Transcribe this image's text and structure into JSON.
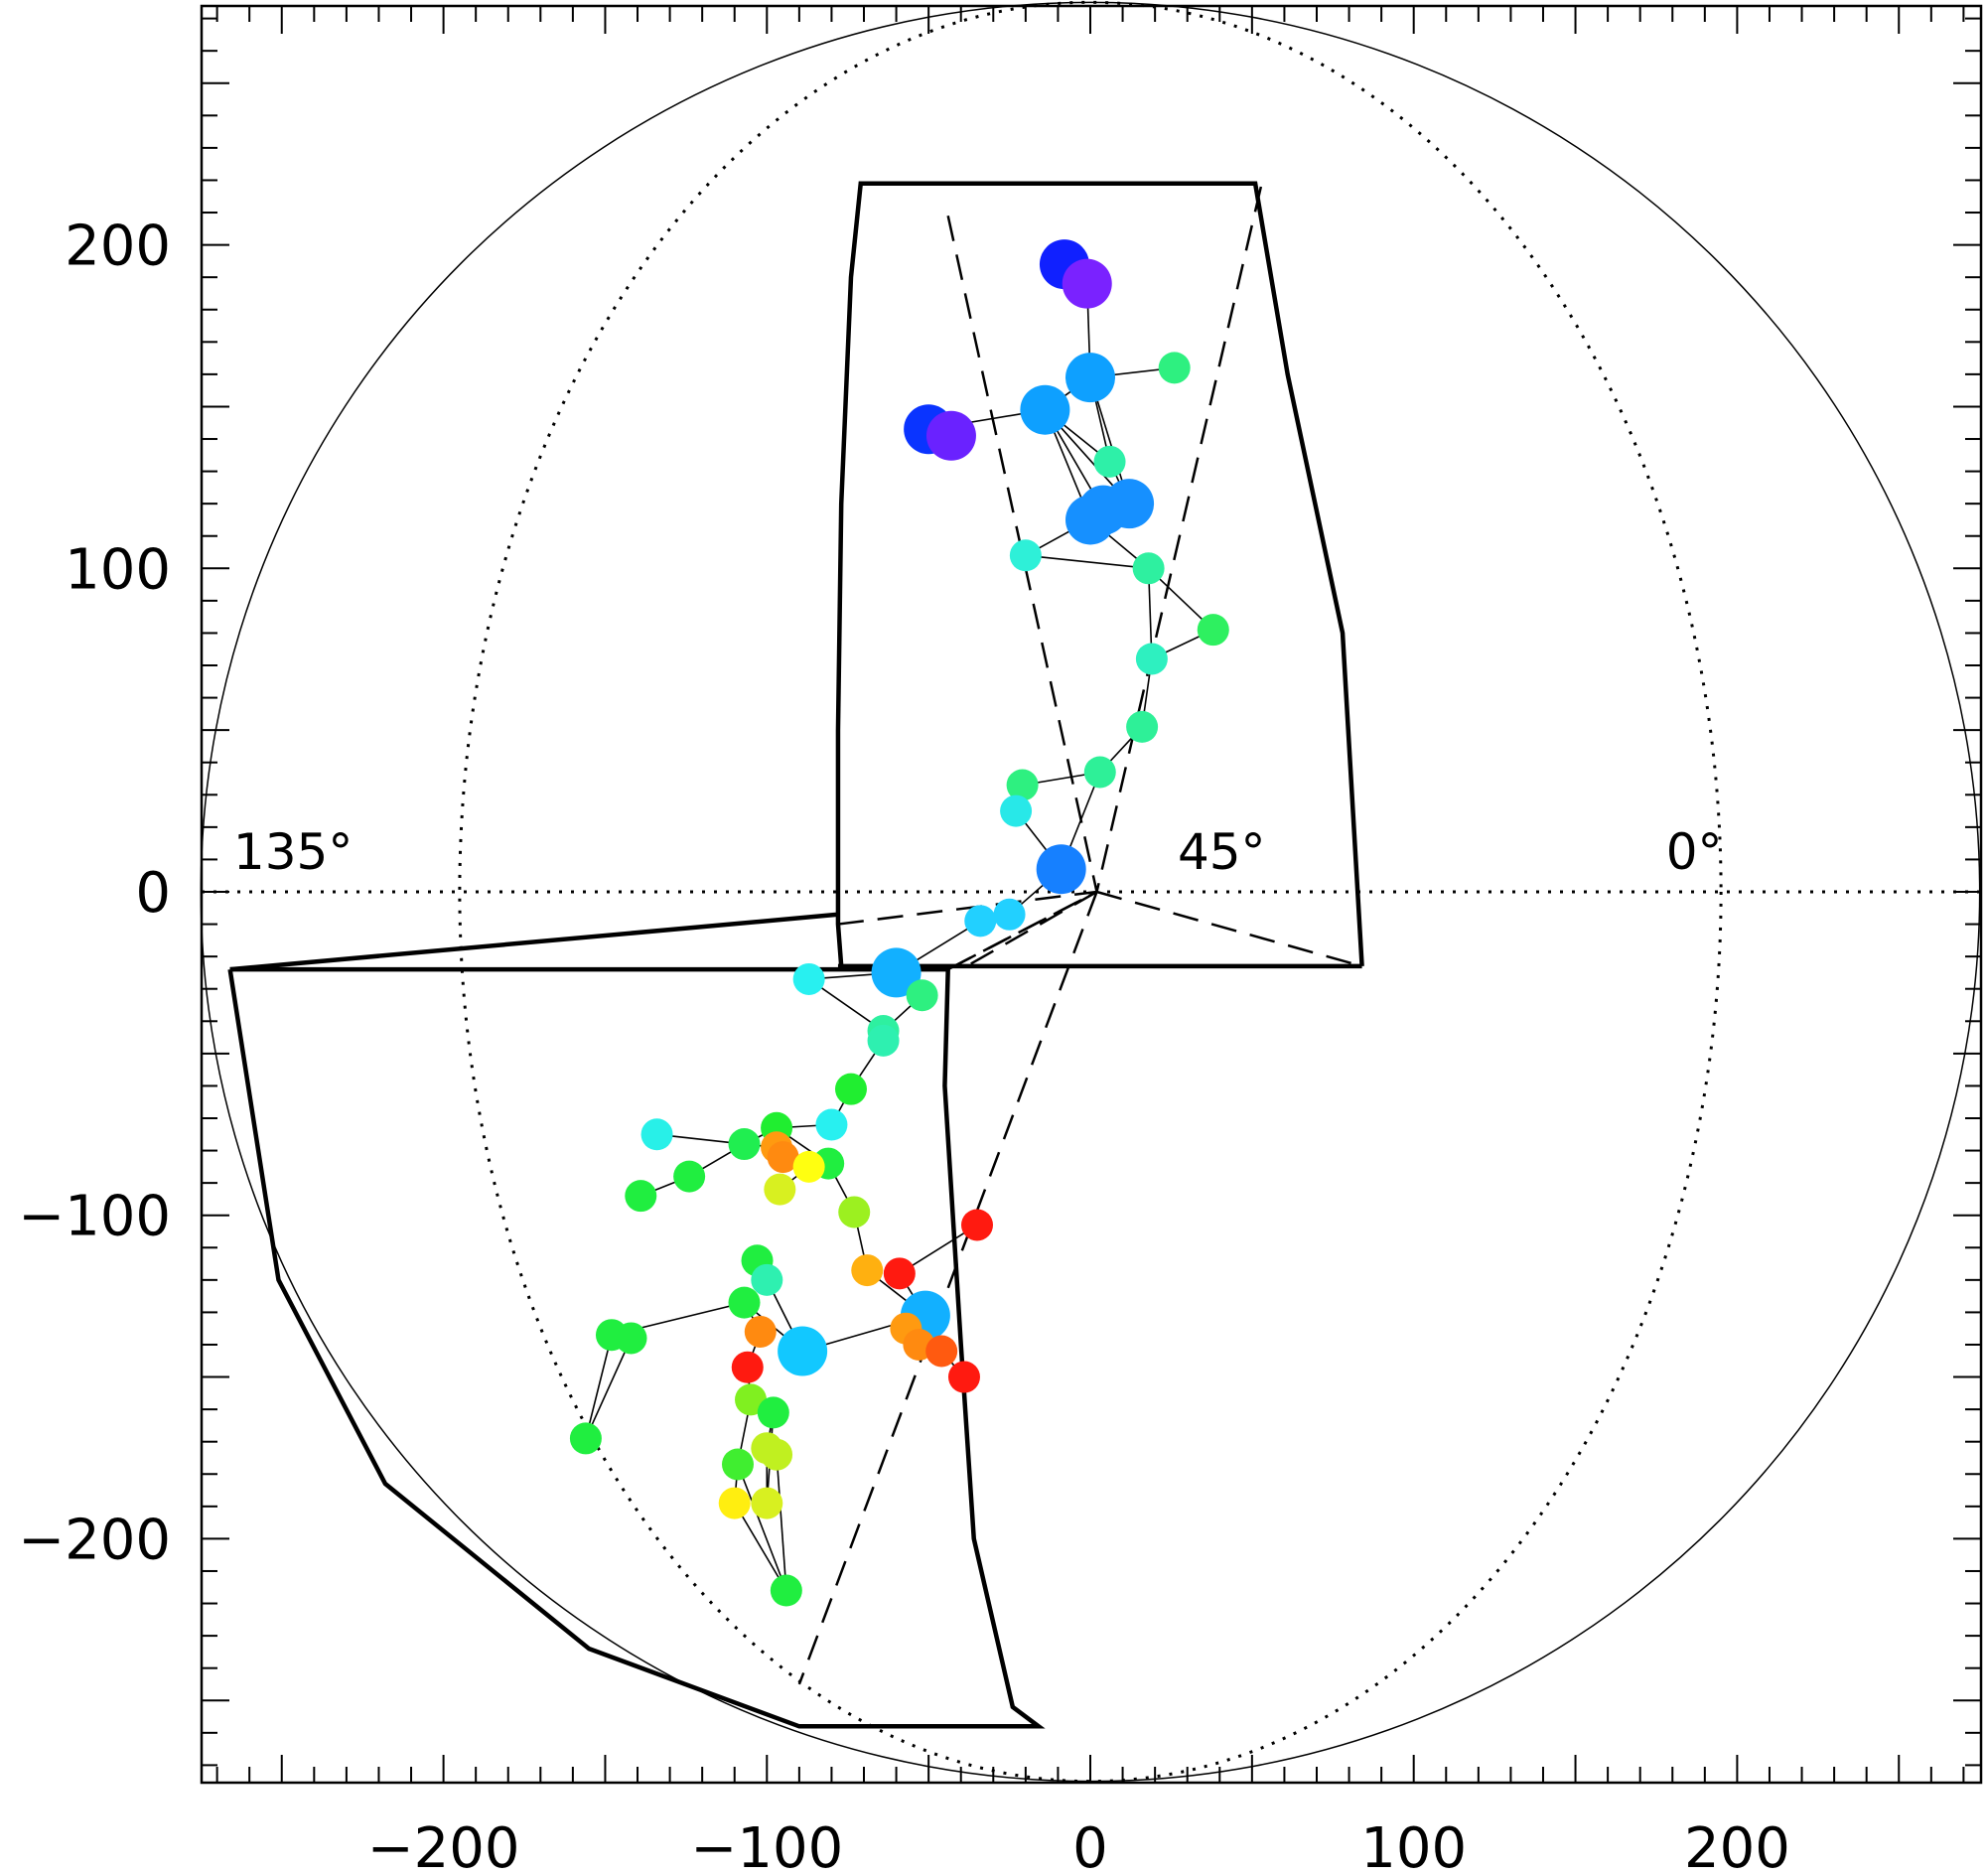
{
  "chart_data": {
    "type": "scatter",
    "title": "",
    "xlabel": "",
    "ylabel": "",
    "xlim": [
      -275,
      275
    ],
    "ylim": [
      -275,
      275
    ],
    "xticks": [
      -200,
      -100,
      0,
      100,
      200
    ],
    "yticks": [
      -200,
      -100,
      0,
      100,
      200
    ],
    "xtick_labels": [
      "−200",
      "−100",
      "0",
      "100",
      "200"
    ],
    "ytick_labels": [
      "−200",
      "−100",
      "0",
      "100",
      "200"
    ],
    "grid": false,
    "angle_labels": [
      "135°",
      "45°",
      "0°"
    ],
    "solar_disk_radius": 275,
    "dotted_ellipse_semi_x": 195,
    "points": [
      {
        "x": -8,
        "y": 194,
        "size": "large",
        "color": "#1020ff"
      },
      {
        "x": -1,
        "y": 188,
        "size": "large",
        "color": "#7a22ff"
      },
      {
        "x": 26,
        "y": 162,
        "size": "small",
        "color": "#2ef080"
      },
      {
        "x": 0,
        "y": 159,
        "size": "large",
        "color": "#0ea0ff"
      },
      {
        "x": -14,
        "y": 149,
        "size": "large",
        "color": "#0ea0ff"
      },
      {
        "x": -50,
        "y": 143,
        "size": "large",
        "color": "#0a34ff"
      },
      {
        "x": -43,
        "y": 141,
        "size": "large",
        "color": "#6a22ff"
      },
      {
        "x": 6,
        "y": 133,
        "size": "small",
        "color": "#2ef0a8"
      },
      {
        "x": 12,
        "y": 120,
        "size": "large",
        "color": "#1690ff"
      },
      {
        "x": 4,
        "y": 118,
        "size": "large",
        "color": "#1690ff"
      },
      {
        "x": 0,
        "y": 115,
        "size": "large",
        "color": "#1690ff"
      },
      {
        "x": -20,
        "y": 104,
        "size": "small",
        "color": "#2ef0d8"
      },
      {
        "x": 18,
        "y": 100,
        "size": "small",
        "color": "#2ef0a0"
      },
      {
        "x": 38,
        "y": 81,
        "size": "small",
        "color": "#2ef060"
      },
      {
        "x": 19,
        "y": 72,
        "size": "small",
        "color": "#2ef0c0"
      },
      {
        "x": 16,
        "y": 51,
        "size": "small",
        "color": "#2ef098"
      },
      {
        "x": 3,
        "y": 37,
        "size": "small",
        "color": "#2ef098"
      },
      {
        "x": -21,
        "y": 33,
        "size": "small",
        "color": "#2ef080"
      },
      {
        "x": -23,
        "y": 25,
        "size": "small",
        "color": "#28e8e8"
      },
      {
        "x": -9,
        "y": 7,
        "size": "large",
        "color": "#1680ff"
      },
      {
        "x": -25,
        "y": -7,
        "size": "small",
        "color": "#22d0ff"
      },
      {
        "x": -34,
        "y": -9,
        "size": "small",
        "color": "#22d0ff"
      },
      {
        "x": -60,
        "y": -25,
        "size": "large",
        "color": "#12b0ff"
      },
      {
        "x": -87,
        "y": -27,
        "size": "small",
        "color": "#28f0f0"
      },
      {
        "x": -52,
        "y": -32,
        "size": "small",
        "color": "#2ef080"
      },
      {
        "x": -64,
        "y": -43,
        "size": "small",
        "color": "#2ef0a0"
      },
      {
        "x": -64,
        "y": -46,
        "size": "small",
        "color": "#2ef0b0"
      },
      {
        "x": -74,
        "y": -61,
        "size": "small",
        "color": "#20ee30"
      },
      {
        "x": -134,
        "y": -75,
        "size": "small",
        "color": "#28f0e8"
      },
      {
        "x": -80,
        "y": -72,
        "size": "small",
        "color": "#28f0f0"
      },
      {
        "x": -97,
        "y": -73,
        "size": "small",
        "color": "#20ee30"
      },
      {
        "x": -107,
        "y": -78,
        "size": "small",
        "color": "#20ee50"
      },
      {
        "x": -97,
        "y": -79,
        "size": "small",
        "color": "#ff9a10"
      },
      {
        "x": -95,
        "y": -82,
        "size": "small",
        "color": "#ff8a10"
      },
      {
        "x": -81,
        "y": -84,
        "size": "small",
        "color": "#20ee40"
      },
      {
        "x": -87,
        "y": -85,
        "size": "small",
        "color": "#ffff10"
      },
      {
        "x": -124,
        "y": -88,
        "size": "small",
        "color": "#20ee40"
      },
      {
        "x": -96,
        "y": -92,
        "size": "small",
        "color": "#d8f020"
      },
      {
        "x": -139,
        "y": -94,
        "size": "small",
        "color": "#20ee40"
      },
      {
        "x": -73,
        "y": -99,
        "size": "small",
        "color": "#9cf020"
      },
      {
        "x": -35,
        "y": -103,
        "size": "small",
        "color": "#ff1a10"
      },
      {
        "x": -103,
        "y": -114,
        "size": "small",
        "color": "#20ee40"
      },
      {
        "x": -69,
        "y": -117,
        "size": "small",
        "color": "#ffb010"
      },
      {
        "x": -59,
        "y": -118,
        "size": "small",
        "color": "#ff1a10"
      },
      {
        "x": -100,
        "y": -120,
        "size": "small",
        "color": "#2ef0b0"
      },
      {
        "x": -107,
        "y": -127,
        "size": "small",
        "color": "#20ee40"
      },
      {
        "x": -51,
        "y": -131,
        "size": "large",
        "color": "#12b0ff"
      },
      {
        "x": -102,
        "y": -136,
        "size": "small",
        "color": "#ff8a10"
      },
      {
        "x": -57,
        "y": -135,
        "size": "small",
        "color": "#ff9a10"
      },
      {
        "x": -148,
        "y": -137,
        "size": "small",
        "color": "#20ee40"
      },
      {
        "x": -142,
        "y": -138,
        "size": "small",
        "color": "#20ee40"
      },
      {
        "x": -89,
        "y": -142,
        "size": "large",
        "color": "#12c8ff"
      },
      {
        "x": -53,
        "y": -140,
        "size": "small",
        "color": "#ff8a10"
      },
      {
        "x": -46,
        "y": -142,
        "size": "small",
        "color": "#ff5a10"
      },
      {
        "x": -106,
        "y": -147,
        "size": "small",
        "color": "#ff1a10"
      },
      {
        "x": -39,
        "y": -150,
        "size": "small",
        "color": "#ff1a10"
      },
      {
        "x": -105,
        "y": -157,
        "size": "small",
        "color": "#80f020"
      },
      {
        "x": -98,
        "y": -161,
        "size": "small",
        "color": "#20ee40"
      },
      {
        "x": -156,
        "y": -169,
        "size": "small",
        "color": "#20ee40"
      },
      {
        "x": -100,
        "y": -172,
        "size": "small",
        "color": "#c0f020"
      },
      {
        "x": -97,
        "y": -174,
        "size": "small",
        "color": "#c0f020"
      },
      {
        "x": -109,
        "y": -177,
        "size": "small",
        "color": "#40ee30"
      },
      {
        "x": -110,
        "y": -189,
        "size": "small",
        "color": "#ffee10"
      },
      {
        "x": -100,
        "y": -189,
        "size": "small",
        "color": "#d8f020"
      },
      {
        "x": -94,
        "y": -216,
        "size": "small",
        "color": "#20ee40"
      }
    ],
    "links": [
      [
        0,
        1
      ],
      [
        1,
        3
      ],
      [
        3,
        4
      ],
      [
        4,
        5
      ],
      [
        5,
        6
      ],
      [
        3,
        2
      ],
      [
        3,
        8
      ],
      [
        3,
        7
      ],
      [
        4,
        7
      ],
      [
        4,
        8
      ],
      [
        4,
        9
      ],
      [
        4,
        10
      ],
      [
        7,
        8
      ],
      [
        8,
        9
      ],
      [
        9,
        10
      ],
      [
        10,
        11
      ],
      [
        11,
        12
      ],
      [
        10,
        12
      ],
      [
        12,
        14
      ],
      [
        12,
        13
      ],
      [
        13,
        14
      ],
      [
        14,
        15
      ],
      [
        15,
        16
      ],
      [
        16,
        17
      ],
      [
        16,
        19
      ],
      [
        17,
        18
      ],
      [
        18,
        19
      ],
      [
        19,
        20
      ],
      [
        20,
        21
      ],
      [
        21,
        22
      ],
      [
        22,
        23
      ],
      [
        23,
        25
      ],
      [
        22,
        24
      ],
      [
        24,
        25
      ],
      [
        25,
        26
      ],
      [
        26,
        27
      ],
      [
        27,
        29
      ],
      [
        29,
        30
      ],
      [
        30,
        31
      ],
      [
        31,
        28
      ],
      [
        31,
        36
      ],
      [
        36,
        38
      ],
      [
        31,
        32
      ],
      [
        32,
        33
      ],
      [
        33,
        34
      ],
      [
        34,
        35
      ],
      [
        35,
        37
      ],
      [
        30,
        34
      ],
      [
        34,
        39
      ],
      [
        39,
        42
      ],
      [
        42,
        46
      ],
      [
        46,
        43
      ],
      [
        43,
        40
      ],
      [
        46,
        48
      ],
      [
        48,
        52
      ],
      [
        52,
        53
      ],
      [
        53,
        55
      ],
      [
        46,
        51
      ],
      [
        51,
        44
      ],
      [
        44,
        41
      ],
      [
        51,
        45
      ],
      [
        45,
        49
      ],
      [
        49,
        50
      ],
      [
        49,
        58
      ],
      [
        50,
        58
      ],
      [
        45,
        47
      ],
      [
        47,
        54
      ],
      [
        54,
        56
      ],
      [
        56,
        57
      ],
      [
        57,
        59
      ],
      [
        59,
        60
      ],
      [
        56,
        61
      ],
      [
        61,
        62
      ],
      [
        62,
        64
      ],
      [
        57,
        63
      ],
      [
        60,
        64
      ],
      [
        61,
        64
      ],
      [
        59,
        63
      ]
    ],
    "frames": {
      "upper_panel": [
        [
          -77,
          -23
        ],
        [
          -78,
          -10
        ],
        [
          -78,
          50
        ],
        [
          -77,
          120
        ],
        [
          -74,
          190
        ],
        [
          -71,
          219
        ],
        [
          51,
          219
        ],
        [
          61,
          160
        ],
        [
          78,
          80
        ],
        [
          84,
          -23
        ]
      ],
      "lower_panel": [
        [
          -266,
          -24
        ],
        [
          -44,
          -24
        ],
        [
          -44,
          -24
        ],
        [
          -45,
          -60
        ],
        [
          -40,
          -140
        ],
        [
          -36,
          -200
        ],
        [
          -24,
          -252
        ],
        [
          -16,
          -258
        ],
        [
          -90,
          -258
        ],
        [
          -155,
          -234
        ],
        [
          -218,
          -183
        ],
        [
          -251,
          -120
        ],
        [
          -266,
          -24
        ]
      ],
      "left_wedge": [
        [
          -266,
          -24
        ],
        [
          -78,
          -7
        ]
      ],
      "dashed_upper": [
        [
          [
            -44,
            209
          ],
          [
            2,
            0
          ],
          [
            53,
            219
          ]
        ],
        [
          [
            2,
            0
          ],
          [
            84,
            -23
          ]
        ],
        [
          [
            -78,
            -10
          ],
          [
            2,
            0
          ],
          [
            -44,
            -24
          ]
        ]
      ],
      "dashed_lower": [
        [
          [
            2,
            0
          ],
          [
            -90,
            -245
          ]
        ],
        [
          [
            2,
            0
          ],
          [
            -40,
            -24
          ]
        ],
        [
          [
            -44,
            -24
          ],
          [
            2,
            0
          ]
        ]
      ]
    }
  }
}
